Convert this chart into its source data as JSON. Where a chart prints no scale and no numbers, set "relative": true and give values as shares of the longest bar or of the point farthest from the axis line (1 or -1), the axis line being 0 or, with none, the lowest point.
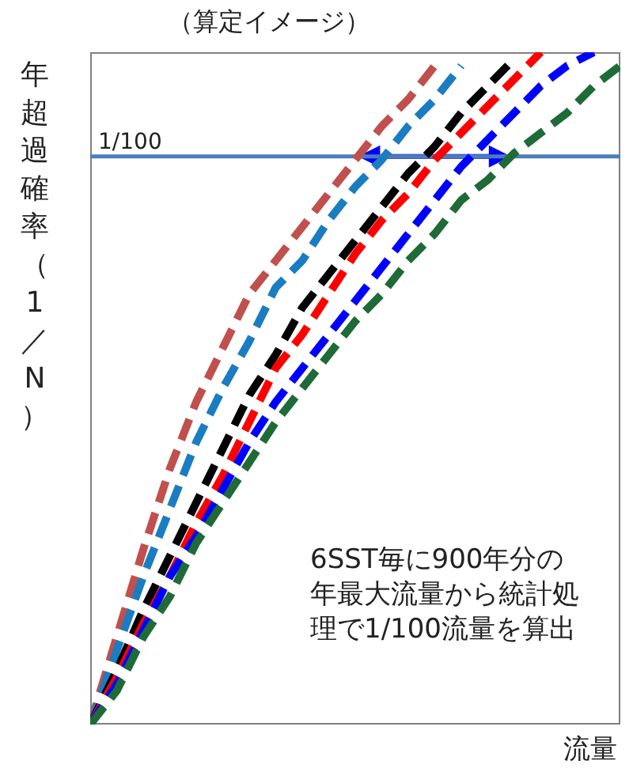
{
  "chart_data": {
    "type": "line",
    "title": "（算定イメージ）",
    "xlabel": "流量",
    "ylabel": "年超過確率（1／N）",
    "relative": true,
    "line_style": "dashed",
    "annotations": [
      "6SST毎に900年分の年最大流量から統計処理で1/100流量を算出"
    ],
    "ref_lines": [
      {
        "axis": "y",
        "value": 0.845,
        "label": "1/100",
        "color": "#4a7ebb"
      }
    ],
    "categories": [
      null,
      null,
      null,
      null,
      null,
      null,
      null,
      null,
      null,
      null,
      null,
      null,
      null,
      null,
      null,
      null,
      null,
      null,
      null,
      null,
      null
    ],
    "series": [
      {
        "color": "#c0504d",
        "values": [
          0,
          0.13,
          0.26,
          0.38,
          0.48,
          0.56,
          0.64,
          0.69,
          0.74,
          0.79,
          0.84,
          0.89,
          0.93,
          0.98,
          null,
          null,
          null,
          null,
          null,
          null,
          null
        ]
      },
      {
        "color": "#1b7dc1",
        "values": [
          0,
          0.11,
          0.22,
          0.32,
          0.42,
          0.5,
          0.57,
          0.65,
          0.69,
          0.75,
          0.8,
          0.84,
          0.89,
          0.93,
          0.98,
          null,
          null,
          null,
          null,
          null,
          null
        ]
      },
      {
        "color": "#000000",
        "values": [
          0,
          0.08,
          0.17,
          0.25,
          0.33,
          0.41,
          0.49,
          0.55,
          0.62,
          0.67,
          0.72,
          0.77,
          0.82,
          0.86,
          0.91,
          0.95,
          0.99,
          null,
          null,
          null,
          null
        ]
      },
      {
        "color": "#ff0000",
        "values": [
          0,
          0.07,
          0.15,
          0.22,
          0.3,
          0.37,
          0.45,
          0.53,
          0.58,
          0.64,
          0.7,
          0.75,
          0.79,
          0.84,
          0.88,
          0.92,
          0.96,
          1,
          null,
          null,
          null
        ]
      },
      {
        "color": "#0000ff",
        "values": [
          0,
          0.06,
          0.14,
          0.22,
          0.28,
          0.35,
          0.42,
          0.48,
          0.53,
          0.58,
          0.63,
          0.68,
          0.73,
          0.78,
          0.83,
          0.87,
          0.91,
          0.95,
          0.98,
          1,
          null
        ]
      },
      {
        "color": "#1e6b37",
        "values": [
          0,
          0.05,
          0.13,
          0.19,
          0.27,
          0.33,
          0.39,
          0.45,
          0.5,
          0.55,
          0.6,
          0.64,
          0.69,
          0.73,
          0.78,
          0.81,
          0.85,
          0.88,
          0.91,
          0.95,
          0.98
        ]
      }
    ]
  }
}
